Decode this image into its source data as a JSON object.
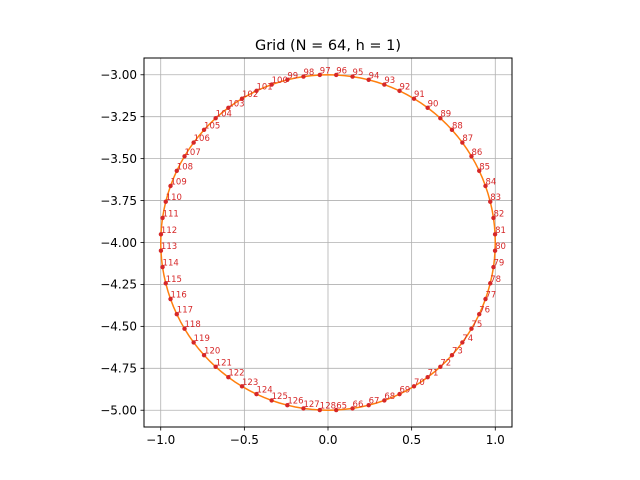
{
  "chart_data": {
    "type": "line",
    "title": "Grid (N = 64, h = 1)",
    "xlabel": "",
    "ylabel": "",
    "xlim": [
      -1.1,
      1.1
    ],
    "ylim": [
      -5.1,
      -2.9
    ],
    "xticks": [
      -1.0,
      -0.5,
      0.0,
      0.5,
      1.0
    ],
    "xtick_labels": [
      "−1.0",
      "−0.5",
      "0.0",
      "0.5",
      "1.0"
    ],
    "yticks": [
      -3.0,
      -3.25,
      -3.5,
      -3.75,
      -4.0,
      -4.25,
      -4.5,
      -4.75,
      -5.0
    ],
    "ytick_labels": [
      "−3.00",
      "−3.25",
      "−3.50",
      "−3.75",
      "−4.00",
      "−4.25",
      "−4.50",
      "−4.75",
      "−5.00"
    ],
    "grid": true,
    "series": [
      {
        "color": "#ff7f0e",
        "x": [
          0.0,
          0.0491,
          0.098,
          0.1467,
          0.1951,
          0.243,
          0.2903,
          0.3369,
          0.3827,
          0.4276,
          0.4714,
          0.5141,
          0.5556,
          0.5957,
          0.6344,
          0.6716,
          0.7071,
          0.741,
          0.773,
          0.8032,
          0.8315,
          0.8577,
          0.8819,
          0.904,
          0.9239,
          0.9415,
          0.9569,
          0.97,
          0.9808,
          0.9892,
          0.9952,
          0.9988,
          1.0,
          0.9988,
          0.9952,
          0.9892,
          0.9808,
          0.97,
          0.9569,
          0.9415,
          0.9239,
          0.904,
          0.8819,
          0.8577,
          0.8315,
          0.8032,
          0.773,
          0.741,
          0.7071,
          0.6716,
          0.6344,
          0.5957,
          0.5556,
          0.5141,
          0.4714,
          0.4276,
          0.3827,
          0.3369,
          0.2903,
          0.243,
          0.1951,
          0.1467,
          0.098,
          0.0491,
          0.0,
          -0.0491,
          -0.098,
          -0.1467,
          -0.1951,
          -0.243,
          -0.2903,
          -0.3369,
          -0.3827,
          -0.4276,
          -0.4714,
          -0.5141,
          -0.5556,
          -0.5957,
          -0.6344,
          -0.6716,
          -0.7071,
          -0.741,
          -0.773,
          -0.8032,
          -0.8315,
          -0.8577,
          -0.8819,
          -0.904,
          -0.9239,
          -0.9415,
          -0.9569,
          -0.97,
          -0.9808,
          -0.9892,
          -0.9952,
          -0.9988,
          -1.0,
          -0.9988,
          -0.9952,
          -0.9892,
          -0.9808,
          -0.97,
          -0.9569,
          -0.9415,
          -0.9239,
          -0.904,
          -0.8819,
          -0.8577,
          -0.8315,
          -0.8032,
          -0.773,
          -0.741,
          -0.7071,
          -0.6716,
          -0.6344,
          -0.5957,
          -0.5556,
          -0.5141,
          -0.4714,
          -0.4276,
          -0.3827,
          -0.3369,
          -0.2903,
          -0.243,
          -0.1951,
          -0.1467,
          -0.098,
          -0.0491,
          0.0
        ],
        "y": [
          -5.0,
          -4.9988,
          -4.9952,
          -4.9892,
          -4.9808,
          -4.97,
          -4.9569,
          -4.9415,
          -4.9239,
          -4.904,
          -4.8819,
          -4.8577,
          -4.8315,
          -4.8032,
          -4.773,
          -4.741,
          -4.7071,
          -4.6716,
          -4.6344,
          -4.5957,
          -4.5556,
          -4.5141,
          -4.4714,
          -4.4276,
          -4.3827,
          -4.3369,
          -4.2903,
          -4.243,
          -4.1951,
          -4.1467,
          -4.098,
          -4.0491,
          -4.0,
          -3.9509,
          -3.902,
          -3.8533,
          -3.8049,
          -3.757,
          -3.7097,
          -3.6631,
          -3.6173,
          -3.5724,
          -3.5286,
          -3.4859,
          -3.4444,
          -3.4043,
          -3.3656,
          -3.3284,
          -3.2929,
          -3.259,
          -3.227,
          -3.1968,
          -3.1685,
          -3.1423,
          -3.1181,
          -3.096,
          -3.0761,
          -3.0585,
          -3.0431,
          -3.03,
          -3.0192,
          -3.0108,
          -3.0048,
          -3.0012,
          -3.0,
          -3.0012,
          -3.0048,
          -3.0108,
          -3.0192,
          -3.03,
          -3.0431,
          -3.0585,
          -3.0761,
          -3.096,
          -3.1181,
          -3.1423,
          -3.1685,
          -3.1968,
          -3.227,
          -3.259,
          -3.2929,
          -3.3284,
          -3.3656,
          -3.4043,
          -3.4444,
          -3.4859,
          -3.5286,
          -3.5724,
          -3.6173,
          -3.6631,
          -3.7097,
          -3.757,
          -3.8049,
          -3.8533,
          -3.902,
          -3.9509,
          -4.0,
          -4.0491,
          -4.098,
          -4.1467,
          -4.1951,
          -4.243,
          -4.2903,
          -4.3369,
          -4.3827,
          -4.4276,
          -4.4714,
          -4.5141,
          -4.5556,
          -4.5957,
          -4.6344,
          -4.6716,
          -4.7071,
          -4.741,
          -4.773,
          -4.8032,
          -4.8315,
          -4.8577,
          -4.8819,
          -4.904,
          -4.9239,
          -4.9415,
          -4.9569,
          -4.97,
          -4.9808,
          -4.9892,
          -4.9952,
          -4.9988,
          -5.0
        ]
      },
      {
        "color": "#d62728",
        "marker": "circle",
        "x": [
          0.0491,
          0.1467,
          0.243,
          0.3369,
          0.4276,
          0.5141,
          0.5957,
          0.6716,
          0.741,
          0.8032,
          0.8577,
          0.904,
          0.9415,
          0.97,
          0.9892,
          0.9988,
          0.9988,
          0.9892,
          0.97,
          0.9415,
          0.904,
          0.8577,
          0.8032,
          0.741,
          0.6716,
          0.5957,
          0.5141,
          0.4276,
          0.3369,
          0.243,
          0.1467,
          0.0491,
          -0.0491,
          -0.1467,
          -0.243,
          -0.3369,
          -0.4276,
          -0.5141,
          -0.5957,
          -0.6716,
          -0.741,
          -0.8032,
          -0.8577,
          -0.904,
          -0.9415,
          -0.97,
          -0.9892,
          -0.9988,
          -0.9988,
          -0.9892,
          -0.97,
          -0.9415,
          -0.904,
          -0.8577,
          -0.8032,
          -0.741,
          -0.6716,
          -0.5957,
          -0.5141,
          -0.4276,
          -0.3369,
          -0.243,
          -0.1467,
          -0.0491
        ],
        "y": [
          -4.9988,
          -4.9892,
          -4.97,
          -4.9415,
          -4.904,
          -4.8577,
          -4.8032,
          -4.741,
          -4.6716,
          -4.5957,
          -4.5141,
          -4.4276,
          -4.3369,
          -4.243,
          -4.1467,
          -4.0491,
          -3.9509,
          -3.8533,
          -3.757,
          -3.6631,
          -3.5724,
          -3.4859,
          -3.4043,
          -3.3284,
          -3.259,
          -3.1968,
          -3.1423,
          -3.096,
          -3.0585,
          -3.03,
          -3.0108,
          -3.0012,
          -3.0012,
          -3.0108,
          -3.03,
          -3.0585,
          -3.096,
          -3.1423,
          -3.1968,
          -3.259,
          -3.3284,
          -3.4043,
          -3.4859,
          -3.5724,
          -3.6631,
          -3.757,
          -3.8533,
          -3.9509,
          -4.0491,
          -4.1467,
          -4.243,
          -4.3369,
          -4.4276,
          -4.5141,
          -4.5957,
          -4.6716,
          -4.741,
          -4.8032,
          -4.8577,
          -4.904,
          -4.9415,
          -4.97,
          -4.9892,
          -4.9988
        ],
        "labels": [
          "65",
          "66",
          "67",
          "68",
          "69",
          "70",
          "71",
          "72",
          "73",
          "74",
          "75",
          "76",
          "77",
          "78",
          "79",
          "80",
          "81",
          "82",
          "83",
          "84",
          "85",
          "86",
          "87",
          "88",
          "89",
          "90",
          "91",
          "92",
          "93",
          "94",
          "95",
          "96",
          "97",
          "98",
          "99",
          "100",
          "101",
          "102",
          "103",
          "104",
          "105",
          "106",
          "107",
          "108",
          "109",
          "110",
          "111",
          "112",
          "113",
          "114",
          "115",
          "116",
          "117",
          "118",
          "119",
          "120",
          "121",
          "122",
          "123",
          "124",
          "125",
          "126",
          "127",
          "128"
        ]
      }
    ]
  }
}
